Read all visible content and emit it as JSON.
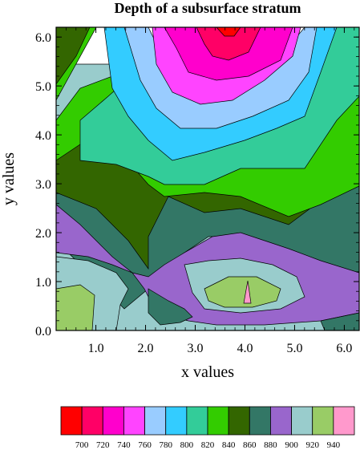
{
  "chart_data": {
    "type": "contour",
    "title": "Depth of a subsurface stratum",
    "xlabel": "x values",
    "ylabel": "y values",
    "xlim": [
      0.2,
      6.3
    ],
    "ylim": [
      0.0,
      6.2
    ],
    "x_ticks": [
      "1.0",
      "2.0",
      "3.0",
      "4.0",
      "5.0",
      "6.0"
    ],
    "y_ticks": [
      "0.0",
      "1.0",
      "2.0",
      "3.0",
      "4.0",
      "5.0",
      "6.0"
    ],
    "levels": [
      700,
      720,
      740,
      760,
      780,
      800,
      820,
      840,
      860,
      880,
      900,
      920,
      940
    ],
    "level_labels": [
      "700",
      "720",
      "740",
      "760",
      "780",
      "800",
      "820",
      "840",
      "860",
      "880",
      "900",
      "920",
      "940"
    ],
    "colors": [
      "#ff0000",
      "#ff0066",
      "#ff00cc",
      "#ff44ff",
      "#99ccff",
      "#33ccff",
      "#33cc99",
      "#33cc00",
      "#336600",
      "#337766",
      "#9966cc",
      "#99cccc",
      "#99cc66",
      "#ff99cc"
    ],
    "grid": false,
    "legend": "bottom colorbar"
  }
}
